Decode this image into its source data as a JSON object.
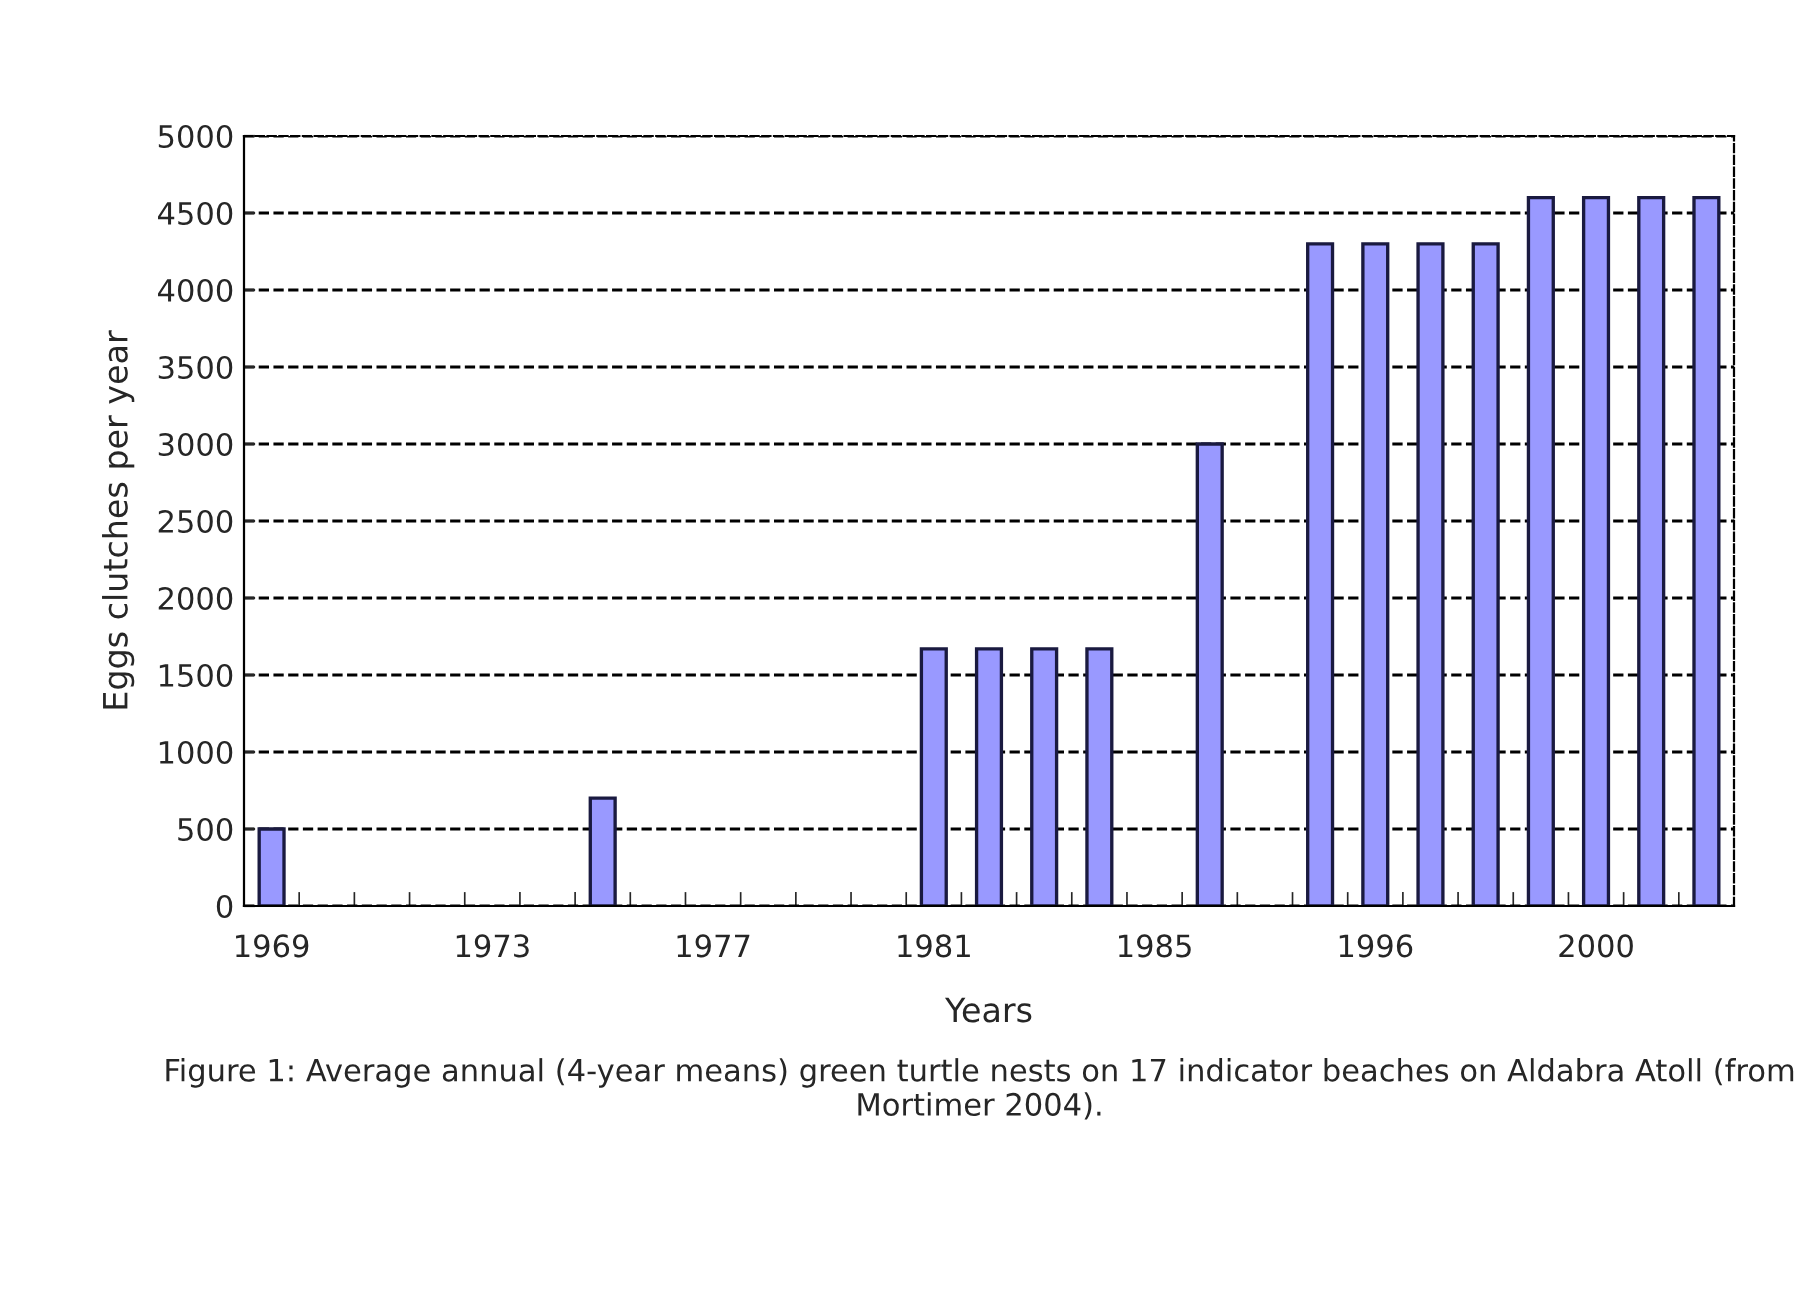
{
  "chart_data": {
    "type": "bar",
    "xlabel": "Years",
    "ylabel": "Eggs clutches per year",
    "annotations": [
      "Figure 1: Average annual (4-year means) green turtle nests on 17 indicator beaches on Aldabra Atoll (from Mortimer 2004)."
    ],
    "categories": [
      "1969",
      null,
      null,
      null,
      "1973",
      null,
      null,
      null,
      "1977",
      null,
      null,
      null,
      "1981",
      null,
      null,
      null,
      "1985",
      null,
      null,
      null,
      "1996",
      null,
      null,
      null,
      "2000",
      null,
      null
    ],
    "values": [
      500,
      null,
      null,
      null,
      null,
      null,
      700,
      null,
      null,
      null,
      null,
      null,
      1670,
      1670,
      1670,
      1670,
      null,
      3000,
      null,
      4300,
      4300,
      4300,
      4300,
      4600,
      4600,
      4600,
      4600
    ],
    "color": "#9999ff",
    "ylim": [
      0,
      5000
    ],
    "yticks": [
      0,
      500,
      1000,
      1500,
      2000,
      2500,
      3000,
      3500,
      4000,
      4500,
      5000
    ],
    "grid": "y",
    "line_style": "dashed"
  }
}
